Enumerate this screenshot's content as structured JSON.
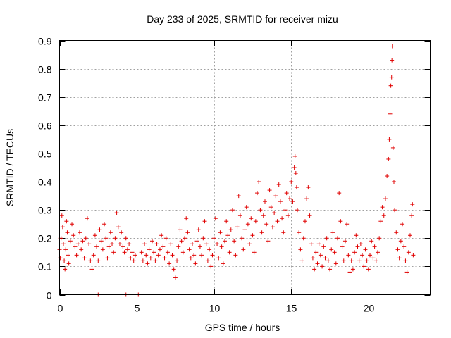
{
  "chart_data": {
    "type": "scatter",
    "title": "Day 233 of 2025, SRMTID for receiver mizu",
    "xlabel": "GPS time / hours",
    "ylabel": "SRMTID / TECUs",
    "xlim": [
      0,
      24
    ],
    "ylim": [
      0,
      0.9
    ],
    "xticks": [
      0,
      5,
      10,
      15,
      20
    ],
    "yticks": [
      0,
      0.1,
      0.2,
      0.3,
      0.4,
      0.5,
      0.6,
      0.7,
      0.8,
      0.9
    ],
    "grid": true,
    "marker": "plus",
    "color": "#e00000",
    "series": [
      {
        "name": "SRMTID",
        "points": [
          [
            0.0,
            0.16
          ],
          [
            0.05,
            0.13
          ],
          [
            0.1,
            0.2
          ],
          [
            0.15,
            0.28
          ],
          [
            0.2,
            0.24
          ],
          [
            0.25,
            0.18
          ],
          [
            0.3,
            0.12
          ],
          [
            0.35,
            0.09
          ],
          [
            0.4,
            0.16
          ],
          [
            0.45,
            0.26
          ],
          [
            0.5,
            0.22
          ],
          [
            0.55,
            0.14
          ],
          [
            0.6,
            0.11
          ],
          [
            0.7,
            0.19
          ],
          [
            0.8,
            0.25
          ],
          [
            0.9,
            0.21
          ],
          [
            1.0,
            0.17
          ],
          [
            1.1,
            0.14
          ],
          [
            1.2,
            0.18
          ],
          [
            1.3,
            0.22
          ],
          [
            1.4,
            0.16
          ],
          [
            1.5,
            0.19
          ],
          [
            1.6,
            0.13
          ],
          [
            1.7,
            0.2
          ],
          [
            1.8,
            0.27
          ],
          [
            1.9,
            0.18
          ],
          [
            2.0,
            0.12
          ],
          [
            2.1,
            0.09
          ],
          [
            2.2,
            0.14
          ],
          [
            2.3,
            0.21
          ],
          [
            2.4,
            0.17
          ],
          [
            2.5,
            0.12
          ],
          [
            2.6,
            0.23
          ],
          [
            2.7,
            0.19
          ],
          [
            2.8,
            0.16
          ],
          [
            2.9,
            0.25
          ],
          [
            3.0,
            0.2
          ],
          [
            3.1,
            0.13
          ],
          [
            3.2,
            0.17
          ],
          [
            3.3,
            0.22
          ],
          [
            3.4,
            0.18
          ],
          [
            3.5,
            0.15
          ],
          [
            3.6,
            0.2
          ],
          [
            3.7,
            0.29
          ],
          [
            3.8,
            0.24
          ],
          [
            3.9,
            0.18
          ],
          [
            4.0,
            0.22
          ],
          [
            4.1,
            0.17
          ],
          [
            4.2,
            0.15
          ],
          [
            4.3,
            0.2
          ],
          [
            4.4,
            0.16
          ],
          [
            4.5,
            0.18
          ],
          [
            4.6,
            0.13
          ],
          [
            4.7,
            0.15
          ],
          [
            4.8,
            0.12
          ],
          [
            4.9,
            0.14
          ],
          [
            2.5,
            0.0
          ],
          [
            4.3,
            0.0
          ],
          [
            5.1,
            0.0
          ],
          [
            5.2,
            0.0
          ],
          [
            5.3,
            0.15
          ],
          [
            5.4,
            0.12
          ],
          [
            5.5,
            0.18
          ],
          [
            5.6,
            0.14
          ],
          [
            5.7,
            0.11
          ],
          [
            5.8,
            0.16
          ],
          [
            5.9,
            0.13
          ],
          [
            6.0,
            0.19
          ],
          [
            6.1,
            0.15
          ],
          [
            6.2,
            0.12
          ],
          [
            6.3,
            0.18
          ],
          [
            6.4,
            0.14
          ],
          [
            6.5,
            0.16
          ],
          [
            6.6,
            0.21
          ],
          [
            6.7,
            0.17
          ],
          [
            6.8,
            0.13
          ],
          [
            6.9,
            0.2
          ],
          [
            7.0,
            0.15
          ],
          [
            7.1,
            0.11
          ],
          [
            7.2,
            0.18
          ],
          [
            7.3,
            0.14
          ],
          [
            7.4,
            0.09
          ],
          [
            7.5,
            0.06
          ],
          [
            7.6,
            0.12
          ],
          [
            7.7,
            0.17
          ],
          [
            7.8,
            0.23
          ],
          [
            7.9,
            0.19
          ],
          [
            8.0,
            0.15
          ],
          [
            8.1,
            0.2
          ],
          [
            8.2,
            0.27
          ],
          [
            8.3,
            0.22
          ],
          [
            8.4,
            0.16
          ],
          [
            8.5,
            0.13
          ],
          [
            8.6,
            0.18
          ],
          [
            8.7,
            0.14
          ],
          [
            8.8,
            0.11
          ],
          [
            8.9,
            0.19
          ],
          [
            9.0,
            0.23
          ],
          [
            9.1,
            0.17
          ],
          [
            9.2,
            0.14
          ],
          [
            9.3,
            0.2
          ],
          [
            9.4,
            0.26
          ],
          [
            9.5,
            0.18
          ],
          [
            9.6,
            0.12
          ],
          [
            9.7,
            0.16
          ],
          [
            9.8,
            0.1
          ],
          [
            9.9,
            0.14
          ],
          [
            10.0,
            0.2
          ],
          [
            10.1,
            0.27
          ],
          [
            10.2,
            0.18
          ],
          [
            10.3,
            0.13
          ],
          [
            10.4,
            0.22
          ],
          [
            10.5,
            0.17
          ],
          [
            10.6,
            0.11
          ],
          [
            10.7,
            0.19
          ],
          [
            10.8,
            0.26
          ],
          [
            10.9,
            0.21
          ],
          [
            11.0,
            0.15
          ],
          [
            11.1,
            0.23
          ],
          [
            11.2,
            0.3
          ],
          [
            11.3,
            0.19
          ],
          [
            11.4,
            0.14
          ],
          [
            11.5,
            0.24
          ],
          [
            11.6,
            0.35
          ],
          [
            11.7,
            0.28
          ],
          [
            11.8,
            0.2
          ],
          [
            11.9,
            0.16
          ],
          [
            12.0,
            0.23
          ],
          [
            12.1,
            0.31
          ],
          [
            12.2,
            0.25
          ],
          [
            12.3,
            0.18
          ],
          [
            12.4,
            0.27
          ],
          [
            12.5,
            0.21
          ],
          [
            12.6,
            0.15
          ],
          [
            12.7,
            0.26
          ],
          [
            12.8,
            0.36
          ],
          [
            12.9,
            0.4
          ],
          [
            13.0,
            0.3
          ],
          [
            13.1,
            0.22
          ],
          [
            13.2,
            0.28
          ],
          [
            13.3,
            0.33
          ],
          [
            13.4,
            0.25
          ],
          [
            13.5,
            0.19
          ],
          [
            13.6,
            0.37
          ],
          [
            13.7,
            0.31
          ],
          [
            13.8,
            0.24
          ],
          [
            13.9,
            0.29
          ],
          [
            14.0,
            0.35
          ],
          [
            14.1,
            0.26
          ],
          [
            14.2,
            0.39
          ],
          [
            14.3,
            0.33
          ],
          [
            14.4,
            0.27
          ],
          [
            14.5,
            0.22
          ],
          [
            14.6,
            0.3
          ],
          [
            14.7,
            0.36
          ],
          [
            14.8,
            0.28
          ],
          [
            14.9,
            0.34
          ],
          [
            15.0,
            0.4
          ],
          [
            15.1,
            0.33
          ],
          [
            15.2,
            0.45
          ],
          [
            15.25,
            0.49
          ],
          [
            15.3,
            0.43
          ],
          [
            15.35,
            0.38
          ],
          [
            15.4,
            0.3
          ],
          [
            15.5,
            0.22
          ],
          [
            15.6,
            0.16
          ],
          [
            15.7,
            0.12
          ],
          [
            15.8,
            0.2
          ],
          [
            15.9,
            0.26
          ],
          [
            16.0,
            0.34
          ],
          [
            16.1,
            0.38
          ],
          [
            16.2,
            0.28
          ],
          [
            16.3,
            0.18
          ],
          [
            16.4,
            0.13
          ],
          [
            16.5,
            0.09
          ],
          [
            16.6,
            0.15
          ],
          [
            16.7,
            0.11
          ],
          [
            16.8,
            0.18
          ],
          [
            16.9,
            0.14
          ],
          [
            17.0,
            0.1
          ],
          [
            17.1,
            0.17
          ],
          [
            17.2,
            0.13
          ],
          [
            17.3,
            0.2
          ],
          [
            17.4,
            0.12
          ],
          [
            17.5,
            0.09
          ],
          [
            17.6,
            0.16
          ],
          [
            17.7,
            0.22
          ],
          [
            17.8,
            0.15
          ],
          [
            17.9,
            0.11
          ],
          [
            18.0,
            0.2
          ],
          [
            18.1,
            0.36
          ],
          [
            18.2,
            0.26
          ],
          [
            18.3,
            0.17
          ],
          [
            18.4,
            0.12
          ],
          [
            18.5,
            0.19
          ],
          [
            18.6,
            0.25
          ],
          [
            18.7,
            0.14
          ],
          [
            18.8,
            0.08
          ],
          [
            18.9,
            0.12
          ],
          [
            19.0,
            0.09
          ],
          [
            19.1,
            0.15
          ],
          [
            19.2,
            0.21
          ],
          [
            19.3,
            0.17
          ],
          [
            19.4,
            0.12
          ],
          [
            19.5,
            0.18
          ],
          [
            19.6,
            0.14
          ],
          [
            19.7,
            0.1
          ],
          [
            19.8,
            0.16
          ],
          [
            19.9,
            0.12
          ],
          [
            20.0,
            0.09
          ],
          [
            20.1,
            0.14
          ],
          [
            20.2,
            0.19
          ],
          [
            20.3,
            0.13
          ],
          [
            20.4,
            0.17
          ],
          [
            20.5,
            0.12
          ],
          [
            20.6,
            0.15
          ],
          [
            20.7,
            0.2
          ],
          [
            20.8,
            0.26
          ],
          [
            20.9,
            0.31
          ],
          [
            21.0,
            0.28
          ],
          [
            21.1,
            0.34
          ],
          [
            21.2,
            0.42
          ],
          [
            21.3,
            0.48
          ],
          [
            21.35,
            0.55
          ],
          [
            21.4,
            0.64
          ],
          [
            21.45,
            0.74
          ],
          [
            21.5,
            0.77
          ],
          [
            21.52,
            0.83
          ],
          [
            21.55,
            0.88
          ],
          [
            21.6,
            0.52
          ],
          [
            21.65,
            0.4
          ],
          [
            21.7,
            0.3
          ],
          [
            21.8,
            0.22
          ],
          [
            21.9,
            0.16
          ],
          [
            22.0,
            0.13
          ],
          [
            22.1,
            0.19
          ],
          [
            22.2,
            0.25
          ],
          [
            22.3,
            0.17
          ],
          [
            22.4,
            0.12
          ],
          [
            22.5,
            0.08
          ],
          [
            22.6,
            0.15
          ],
          [
            22.7,
            0.21
          ],
          [
            22.8,
            0.28
          ],
          [
            22.85,
            0.32
          ],
          [
            22.9,
            0.14
          ]
        ]
      }
    ]
  }
}
